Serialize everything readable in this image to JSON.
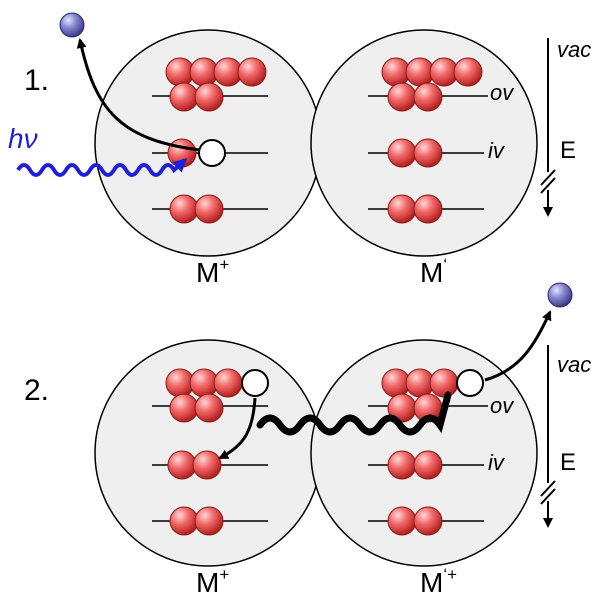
{
  "panel1": {
    "step": "1.",
    "photon": "hν",
    "left_atom": {
      "label": "M",
      "charge": "+"
    },
    "right_atom": {
      "label": "M",
      "charge": "‘"
    },
    "axis": {
      "top": "vac",
      "outer": "ov",
      "inner": "iv",
      "energy": "E"
    }
  },
  "panel2": {
    "step": "2.",
    "left_atom": {
      "label": "M",
      "charge": "+"
    },
    "right_atom": {
      "label": "M",
      "charge": "‘+"
    },
    "axis": {
      "top": "vac",
      "outer": "ov",
      "inner": "iv",
      "energy": "E"
    }
  },
  "colors": {
    "circle_fill": "#efefef",
    "electron": "#e23b3b",
    "photon": "#1f1fd6",
    "emitted_electron": "#6a6ab8"
  }
}
